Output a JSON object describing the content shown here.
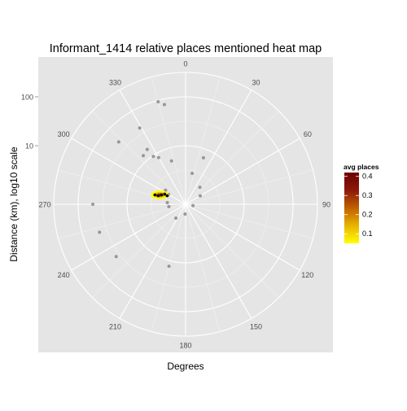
{
  "chart_data": {
    "type": "scatter",
    "coord": "polar",
    "title": "Informant_1414 relative places mentioned heat map",
    "xlabel": "Degrees",
    "ylabel": "Distance (km), log10 scale",
    "angle_ticks": [
      0,
      30,
      60,
      90,
      120,
      150,
      180,
      210,
      240,
      270,
      300,
      330
    ],
    "angle_tick_labels": [
      "0",
      "30",
      "60",
      "90",
      "120",
      "150",
      "180",
      "210",
      "240",
      "270",
      "300",
      "330"
    ],
    "radial_ticks": [
      10,
      100
    ],
    "radial_tick_labels": [
      "10",
      "100"
    ],
    "radial_scale": "log10",
    "radial_range_log10": [
      -0.2,
      2.5
    ],
    "grid": true,
    "points": [
      {
        "deg": 345,
        "dist": 94
      },
      {
        "deg": 348,
        "dist": 77
      },
      {
        "deg": 329,
        "dist": 42
      },
      {
        "deg": 313,
        "dist": 47
      },
      {
        "deg": 325,
        "dist": 14.8
      },
      {
        "deg": 319,
        "dist": 13.2
      },
      {
        "deg": 326,
        "dist": 9.6
      },
      {
        "deg": 330,
        "dist": 8.0
      },
      {
        "deg": 342,
        "dist": 5.4
      },
      {
        "deg": 21,
        "dist": 6.6
      },
      {
        "deg": 12,
        "dist": 2.8
      },
      {
        "deg": 40,
        "dist": 1.8
      },
      {
        "deg": 60,
        "dist": 1.4
      },
      {
        "deg": 100,
        "dist": 0.9
      },
      {
        "deg": 275,
        "dist": 1.5
      },
      {
        "deg": 262,
        "dist": 1.4
      },
      {
        "deg": 300,
        "dist": 1.6
      },
      {
        "deg": 305,
        "dist": 2.0
      },
      {
        "deg": 183,
        "dist": 1.0
      },
      {
        "deg": 215,
        "dist": 1.4
      },
      {
        "deg": 270,
        "dist": 50
      },
      {
        "deg": 252,
        "dist": 45
      },
      {
        "deg": 233,
        "dist": 38
      },
      {
        "deg": 195,
        "dist": 13
      }
    ],
    "heat_cluster": {
      "deg": 290,
      "dist": 2.3,
      "intensity_range": [
        0.05,
        0.42
      ]
    },
    "legend": {
      "title": "avg places",
      "ticks": [
        0.1,
        0.2,
        0.3,
        0.4
      ],
      "tick_labels": [
        "0.1",
        "0.2",
        "0.3",
        "0.4"
      ],
      "range": [
        0.05,
        0.42
      ],
      "colors": [
        "#ffff00",
        "#e8b400",
        "#c06000",
        "#8b1a0a",
        "#6e0000"
      ],
      "position": "right"
    },
    "colors": {
      "panel_bg": "#e5e5e5",
      "grid_major": "#ffffff",
      "grid_minor": "#f2f2f2",
      "point": "#888888",
      "text": "#000000",
      "tick_text": "#4d4d4d"
    }
  }
}
